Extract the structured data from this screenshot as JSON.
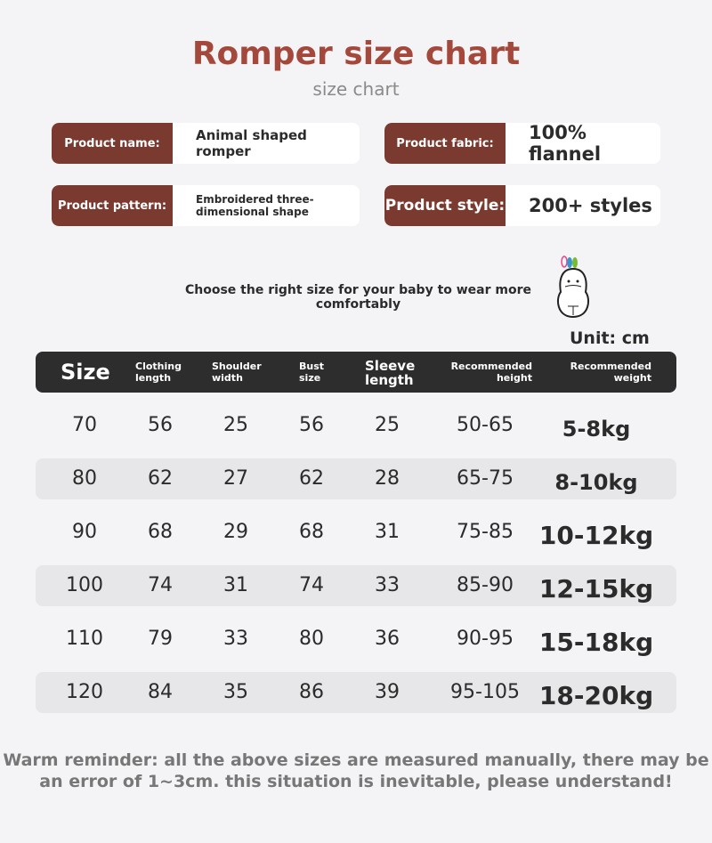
{
  "title": "Romper size chart",
  "subtitle": "size chart",
  "info": [
    {
      "label": "Product name:",
      "value": "Animal shaped romper"
    },
    {
      "label": "Product fabric:",
      "value": "100% flannel"
    },
    {
      "label": "Product pattern:",
      "value": "Embroidered three-dimensional shape"
    },
    {
      "label": "Product style:",
      "value": "200+ styles"
    }
  ],
  "choose_text": "Choose the right size for your baby to wear more comfortably",
  "unit": "Unit: cm",
  "table": {
    "headers": [
      "Size",
      "Clothing length",
      "Shoulder width",
      "Bust size",
      "Sleeve length",
      "Recommended height",
      "Recommended weight"
    ],
    "rows": [
      [
        "70",
        "56",
        "25",
        "56",
        "25",
        "50-65",
        "5-8kg"
      ],
      [
        "80",
        "62",
        "27",
        "62",
        "28",
        "65-75",
        "8-10kg"
      ],
      [
        "90",
        "68",
        "29",
        "68",
        "31",
        "75-85",
        "10-12kg"
      ],
      [
        "100",
        "74",
        "31",
        "74",
        "33",
        "85-90",
        "12-15kg"
      ],
      [
        "110",
        "79",
        "33",
        "80",
        "36",
        "90-95",
        "15-18kg"
      ],
      [
        "120",
        "84",
        "35",
        "86",
        "39",
        "95-105",
        "18-20kg"
      ]
    ]
  },
  "reminder": "Warm reminder: all the above sizes are measured manually, there may be an error of 1~3cm. this situation is inevitable, please understand!",
  "colors": {
    "title": "#a4483c",
    "label_bg": "#7b3a2f",
    "header_bg": "#2d2d2d"
  }
}
